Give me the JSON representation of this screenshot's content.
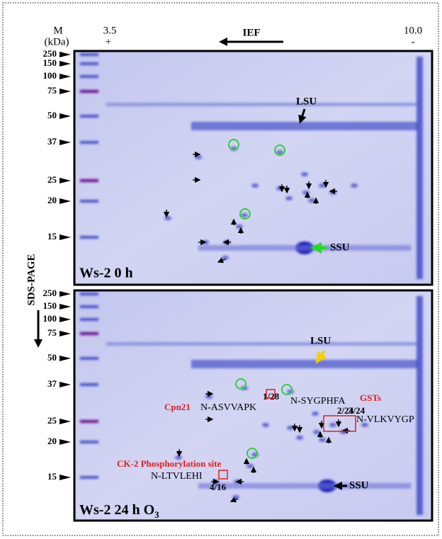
{
  "header": {
    "mass_label": "M",
    "mass_unit": "(kDa)",
    "ph_low": "3.5",
    "ph_low_sign": "+",
    "direction_label": "IEF",
    "ph_high": "10.0",
    "ph_high_sign": "-"
  },
  "side_label": "SDS-PAGE",
  "panels": [
    {
      "label": "Ws-2 0 h",
      "markers": [
        250,
        150,
        100,
        75,
        50,
        37,
        25,
        20,
        15
      ],
      "annotations": [
        {
          "text": "LSU"
        },
        {
          "text": "SSU"
        }
      ]
    },
    {
      "label": "Ws-2 24 h O",
      "label_subscript": "3",
      "markers": [
        250,
        150,
        100,
        75,
        50,
        37,
        25,
        20,
        15
      ],
      "annotations": [
        {
          "text": "LSU"
        },
        {
          "text": "SSU"
        },
        {
          "text": "Cpn21"
        },
        {
          "text": "N-ASVVAPK"
        },
        {
          "text": "1/28"
        },
        {
          "text": "N-SYGPHFA"
        },
        {
          "text": "GSTs"
        },
        {
          "text": "2/24"
        },
        {
          "text": "3/24"
        },
        {
          "text": "N-VLKVYGP"
        },
        {
          "text": "CK-2 Phosphorylation site"
        },
        {
          "text": "N-LTVLEHI"
        },
        {
          "text": "4/16"
        }
      ]
    }
  ]
}
